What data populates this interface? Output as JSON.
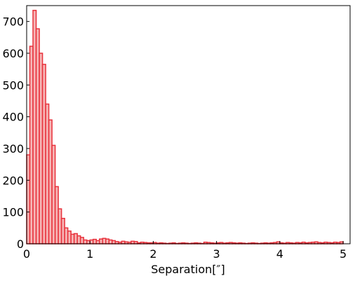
{
  "chart_data": {
    "type": "histogram",
    "x_label": "Separation[″]",
    "bins": [
      0,
      0.05,
      0.1,
      0.15,
      0.2,
      0.25,
      0.3,
      0.35,
      0.4,
      0.45,
      0.5,
      0.55,
      0.6,
      0.65,
      0.7,
      0.75,
      0.8,
      0.85,
      0.9,
      0.95,
      1,
      1.05,
      1.1,
      1.15,
      1.2,
      1.25,
      1.3,
      1.35,
      1.4,
      1.45,
      1.5,
      1.55,
      1.6,
      1.65,
      1.7,
      1.75,
      1.8,
      1.85,
      1.9,
      1.95,
      2,
      2.05,
      2.1,
      2.15,
      2.2,
      2.25,
      2.3,
      2.35,
      2.4,
      2.45,
      2.5,
      2.55,
      2.6,
      2.65,
      2.7,
      2.75,
      2.8,
      2.85,
      2.9,
      2.95,
      3,
      3.05,
      3.1,
      3.15,
      3.2,
      3.25,
      3.3,
      3.35,
      3.4,
      3.45,
      3.5,
      3.55,
      3.6,
      3.65,
      3.7,
      3.75,
      3.8,
      3.85,
      3.9,
      3.95,
      4,
      4.05,
      4.1,
      4.15,
      4.2,
      4.25,
      4.3,
      4.35,
      4.4,
      4.45,
      4.5,
      4.55,
      4.6,
      4.65,
      4.7,
      4.75,
      4.8,
      4.85,
      4.9,
      4.95,
      5
    ],
    "counts": [
      280,
      622,
      735,
      677,
      600,
      565,
      440,
      390,
      310,
      180,
      110,
      80,
      50,
      40,
      30,
      32,
      25,
      20,
      12,
      10,
      12,
      14,
      10,
      15,
      17,
      15,
      12,
      10,
      7,
      5,
      8,
      6,
      5,
      8,
      7,
      3,
      5,
      4,
      3,
      3,
      4,
      2,
      3,
      2,
      1,
      2,
      3,
      1,
      2,
      3,
      2,
      1,
      2,
      3,
      2,
      1,
      5,
      4,
      3,
      2,
      3,
      4,
      2,
      3,
      4,
      3,
      2,
      3,
      2,
      1,
      2,
      3,
      2,
      1,
      2,
      3,
      2,
      3,
      4,
      6,
      3,
      2,
      4,
      3,
      2,
      4,
      3,
      5,
      3,
      4,
      5,
      6,
      4,
      3,
      5,
      4,
      3,
      5,
      4,
      6
    ],
    "color": "#f4a3a3",
    "edge_color": "#e8323c",
    "xlim": [
      0,
      5.11
    ],
    "ylim": [
      0,
      750
    ],
    "xticks": [
      0,
      1,
      2,
      3,
      4,
      5
    ],
    "yticks": [
      0,
      100,
      200,
      300,
      400,
      500,
      600,
      700
    ]
  }
}
